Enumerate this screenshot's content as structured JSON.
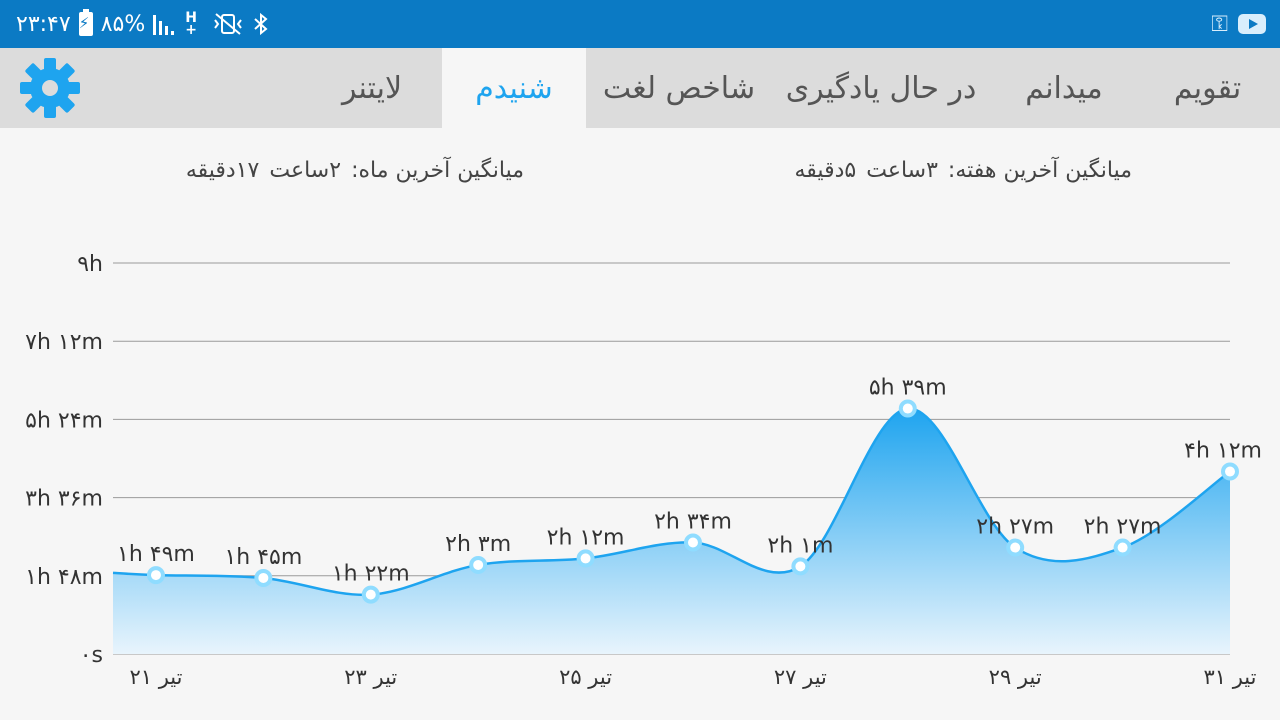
{
  "status_bar": {
    "time": "۲۳:۴۷",
    "battery": "۸۵%",
    "signal": "H+"
  },
  "tabs": [
    {
      "label": "تقویم",
      "active": false
    },
    {
      "label": "میدانم",
      "active": false
    },
    {
      "label": "در حال یادگیری",
      "active": false
    },
    {
      "label": "شاخص لغت",
      "active": false
    },
    {
      "label": "شنیدم",
      "active": true
    },
    {
      "label": "لایتنر",
      "active": false
    }
  ],
  "averages": {
    "week_label": "میانگین آخرین هفته:",
    "week_hours": "۳ساعت",
    "week_minutes": "۵دقیقه",
    "month_label": "میانگین آخرین ماه:",
    "month_hours": "۲ساعت",
    "month_minutes": "۱۷دقیقه"
  },
  "colors": {
    "accent": "#1ea4ef",
    "status_bar": "#0b7ac4",
    "tab_bar": "#dcdcdc",
    "area_top": "#1ea4ef",
    "area_bottom": "#e8f4fc"
  },
  "icons": {
    "settings": "gear-icon",
    "key": "key-icon",
    "youtube": "youtube-icon"
  },
  "chart_data": {
    "type": "area",
    "y_ticks": [
      "۰s",
      "۱h ۴۸m",
      "۳h ۳۶m",
      "۵h ۲۴m",
      "۷h ۱۲m",
      "۹h"
    ],
    "ylim": [
      0,
      540
    ],
    "x_ticks": [
      {
        "x": 21,
        "label": "۲۱ تیر"
      },
      {
        "x": 23,
        "label": "۲۳ تیر"
      },
      {
        "x": 25,
        "label": "۲۵ تیر"
      },
      {
        "x": 27,
        "label": "۲۷ تیر"
      },
      {
        "x": 29,
        "label": "۲۹ تیر"
      },
      {
        "x": 31,
        "label": "۳۱ تیر"
      }
    ],
    "points": [
      {
        "x": 20.6,
        "y": 112,
        "label": null
      },
      {
        "x": 21,
        "y": 109,
        "label": "۱h ۴۹m"
      },
      {
        "x": 22,
        "y": 105,
        "label": "۱h ۴۵m"
      },
      {
        "x": 23,
        "y": 82,
        "label": "۱h ۲۲m"
      },
      {
        "x": 24,
        "y": 123,
        "label": "۲h ۳m"
      },
      {
        "x": 25,
        "y": 132,
        "label": "۲h ۱۲m"
      },
      {
        "x": 26,
        "y": 154,
        "label": "۲h ۳۴m"
      },
      {
        "x": 27,
        "y": 121,
        "label": "۲h ۱m"
      },
      {
        "x": 28,
        "y": 339,
        "label": "۵h ۳۹m"
      },
      {
        "x": 29,
        "y": 147,
        "label": "۲h ۲۷m"
      },
      {
        "x": 30,
        "y": 147,
        "label": "۲h ۲۷m"
      },
      {
        "x": 31,
        "y": 252,
        "label": "۴h ۱۲m"
      }
    ]
  }
}
